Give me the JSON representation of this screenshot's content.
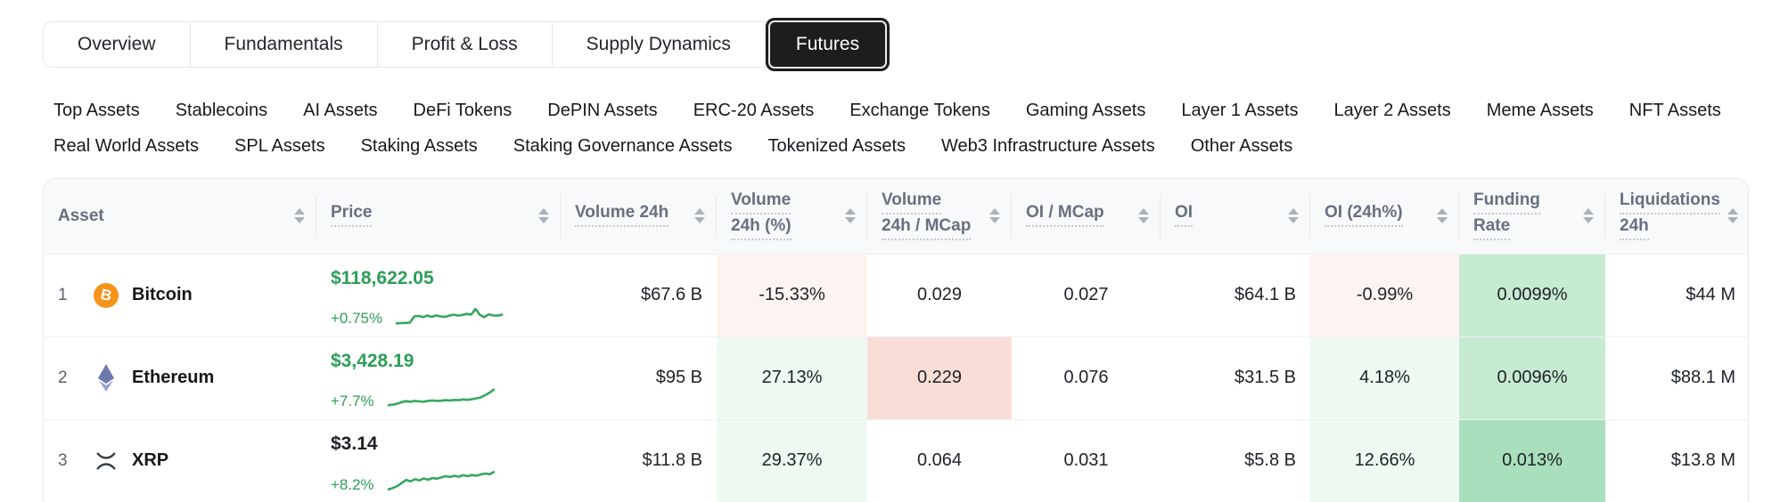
{
  "tabs": [
    {
      "label": "Overview",
      "selected": false
    },
    {
      "label": "Fundamentals",
      "selected": false
    },
    {
      "label": "Profit & Loss",
      "selected": false
    },
    {
      "label": "Supply Dynamics",
      "selected": false
    },
    {
      "label": "Futures",
      "selected": true
    }
  ],
  "categories": {
    "row1": [
      "Top Assets",
      "Stablecoins",
      "AI Assets",
      "DeFi Tokens",
      "DePIN Assets",
      "ERC-20 Assets",
      "Exchange Tokens",
      "Gaming Assets",
      "Layer 1 Assets",
      "Layer 2 Assets",
      "Meme Assets",
      "NFT Assets"
    ],
    "row2": [
      "Real World Assets",
      "SPL Assets",
      "Staking Assets",
      "Staking Governance Assets",
      "Tokenized Assets",
      "Web3 Infrastructure Assets",
      "Other Assets"
    ]
  },
  "table": {
    "headers": [
      {
        "line1": "Asset",
        "line2": ""
      },
      {
        "line1": "Price",
        "line2": ""
      },
      {
        "line1": "Volume 24h",
        "line2": ""
      },
      {
        "line1": "Volume",
        "line2": "24h (%)"
      },
      {
        "line1": "Volume",
        "line2": "24h / MCap"
      },
      {
        "line1": "OI / MCap",
        "line2": ""
      },
      {
        "line1": "OI",
        "line2": ""
      },
      {
        "line1": "OI (24h%)",
        "line2": ""
      },
      {
        "line1": "Funding",
        "line2": "Rate"
      },
      {
        "line1": "Liquidations",
        "line2": "24h"
      }
    ],
    "rows": [
      {
        "rank": "1",
        "name": "Bitcoin",
        "icon_glyph": "B",
        "price": "$118,622.05",
        "change": "+0.75%",
        "volume_24h": "$67.6 B",
        "volume_24h_pct": "-15.33%",
        "volume_mcap": "0.029",
        "oi_mcap": "0.027",
        "oi": "$64.1 B",
        "oi_24h": "-0.99%",
        "funding_rate": "0.0099%",
        "liquidations_24h": "$44 M",
        "sparkline": [
          6,
          7,
          8,
          9,
          34,
          36,
          31,
          37,
          32,
          38,
          34,
          32,
          37,
          41,
          37,
          40,
          44,
          41,
          64,
          40,
          31,
          42,
          38,
          37,
          41
        ]
      },
      {
        "rank": "2",
        "name": "Ethereum",
        "icon_glyph": "",
        "price": "$3,428.19",
        "change": "+7.7%",
        "volume_24h": "$95 B",
        "volume_24h_pct": "27.13%",
        "volume_mcap": "0.229",
        "oi_mcap": "0.076",
        "oi": "$31.5 B",
        "oi_24h": "4.18%",
        "funding_rate": "0.0096%",
        "liquidations_24h": "$88.1 M",
        "sparkline": [
          10,
          12,
          16,
          22,
          26,
          24,
          27,
          25,
          24,
          27,
          29,
          27,
          28,
          30,
          29,
          31,
          30,
          33,
          31,
          34,
          37,
          41,
          50,
          60,
          72
        ]
      },
      {
        "rank": "3",
        "name": "XRP",
        "icon_glyph": "",
        "price": "$3.14",
        "change": "+8.2%",
        "volume_24h": "$11.8 B",
        "volume_24h_pct": "29.37%",
        "volume_mcap": "0.064",
        "oi_mcap": "0.031",
        "oi": "$5.8 B",
        "oi_24h": "12.66%",
        "funding_rate": "0.013%",
        "liquidations_24h": "$13.8 M",
        "sparkline": [
          4,
          10,
          18,
          30,
          42,
          36,
          45,
          40,
          48,
          43,
          50,
          47,
          52,
          57,
          54,
          59,
          55,
          61,
          57,
          62,
          59,
          64,
          68,
          65,
          74
        ]
      }
    ]
  },
  "colors": {
    "accent_green_text": "#2c9e58",
    "spark_green": "#35a75f",
    "pink_light": "#fdf3f0",
    "pink_mid": "#f9ded8",
    "green_light": "#eef9f1",
    "green_mid": "#c6ebd1",
    "green_strong": "#a9dfbc",
    "bitcoin_orange": "#f7931a",
    "selected_tab_bg": "#1d1d1f",
    "header_text": "#667080",
    "border": "#e5e7ea",
    "row_border": "#eef0f2",
    "header_bg": "#f8f9fa",
    "xrp_dark": "#32383f",
    "eth_slate": "#62688f"
  }
}
